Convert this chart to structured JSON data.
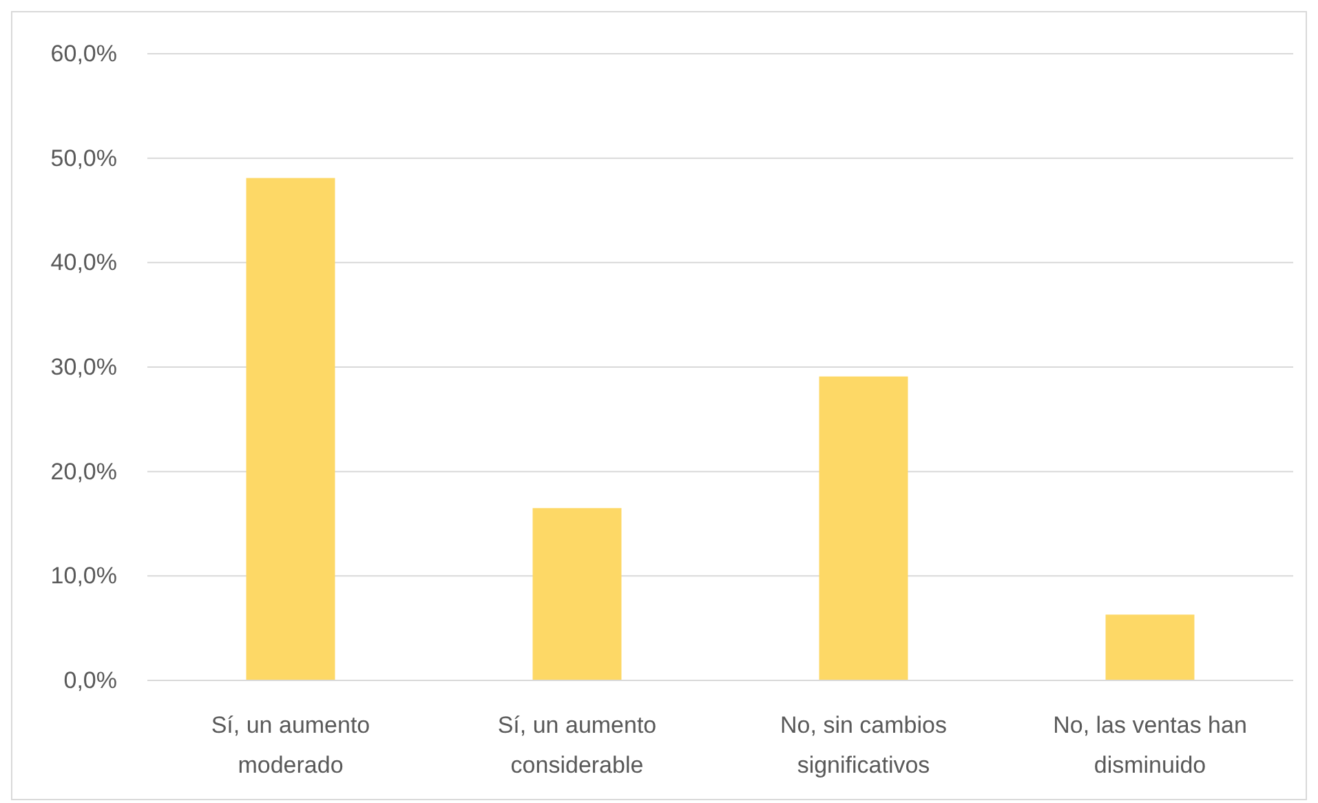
{
  "chart_data": {
    "type": "bar",
    "categories": [
      "Sí, un aumento moderado",
      "Sí, un aumento considerable",
      "No, sin cambios significativos",
      "No, las ventas han disminuido"
    ],
    "values": [
      48.1,
      16.5,
      29.1,
      6.3
    ],
    "color": "#fdd866",
    "ylim": [
      0,
      60
    ],
    "yticks": [
      {
        "value": 0,
        "label": "0,0%"
      },
      {
        "value": 10,
        "label": "10,0%"
      },
      {
        "value": 20,
        "label": "20,0%"
      },
      {
        "value": 30,
        "label": "30,0%"
      },
      {
        "value": 40,
        "label": "40,0%"
      },
      {
        "value": 50,
        "label": "50,0%"
      },
      {
        "value": 60,
        "label": "60,0%"
      }
    ],
    "grid": "y"
  }
}
